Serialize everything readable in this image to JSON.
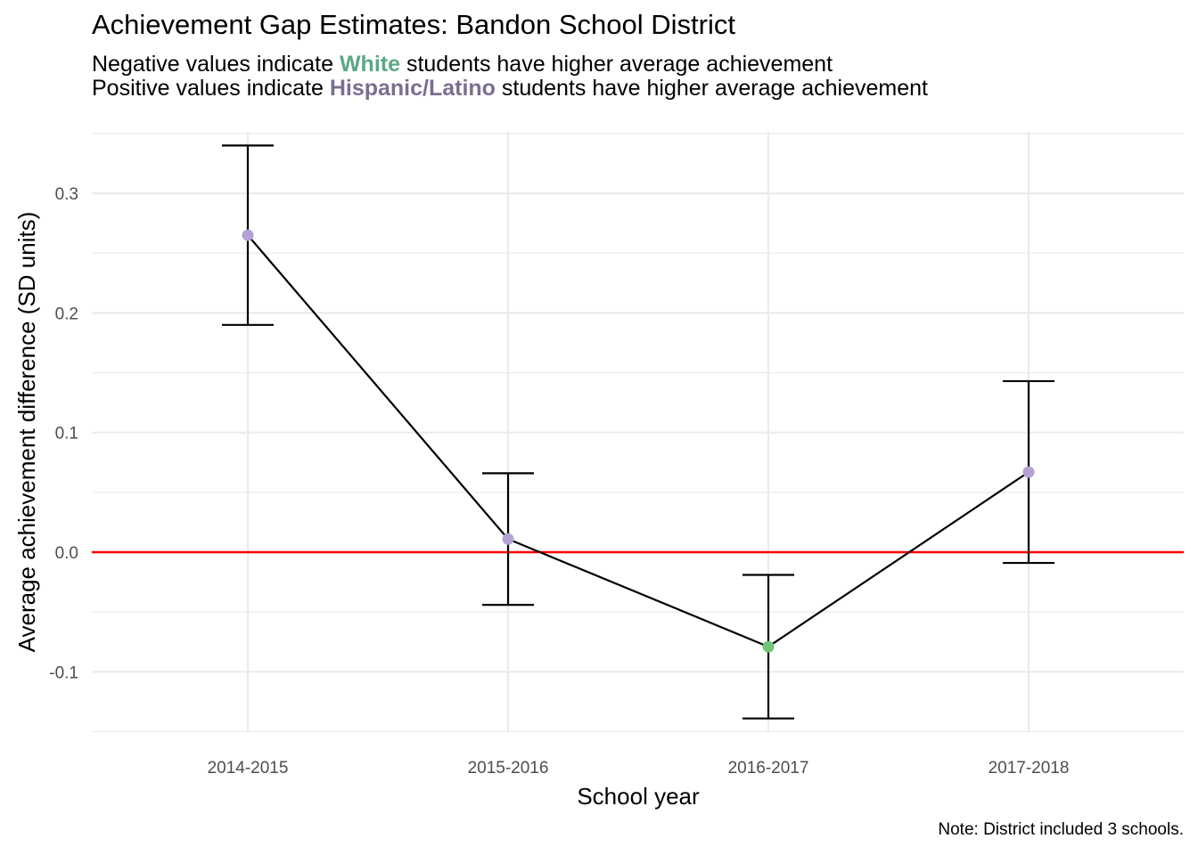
{
  "title": "Achievement Gap Estimates: Bandon School District",
  "subtitle": {
    "line1_prefix": "Negative values indicate ",
    "line1_highlight": "White",
    "line1_suffix": " students have higher average achievement",
    "line2_prefix": "Positive values indicate ",
    "line2_highlight": "Hispanic/Latino",
    "line2_suffix": " students have higher average achievement"
  },
  "caption": "Note: District included 3 schools.",
  "colors": {
    "white_group": "#5aa882",
    "hispanic_group": "#7b6e91",
    "point_positive": "#b3a2d3",
    "point_negative": "#73c378",
    "reference_line": "#ff0000",
    "grid": "#ebebeb",
    "line": "#000000"
  },
  "chart_data": {
    "type": "line",
    "xlabel": "School year",
    "ylabel": "Average achievement difference (SD units)",
    "categories": [
      "2014-2015",
      "2015-2016",
      "2016-2017",
      "2017-2018"
    ],
    "values": [
      0.265,
      0.011,
      -0.079,
      0.067
    ],
    "error_lower": [
      0.19,
      -0.044,
      -0.139,
      -0.009
    ],
    "error_upper": [
      0.34,
      0.066,
      -0.019,
      0.143
    ],
    "reference_line": 0,
    "ylim": [
      -0.15,
      0.35
    ],
    "yticks": [
      -0.1,
      0.0,
      0.1,
      0.2,
      0.3
    ],
    "ytick_labels": [
      "-0.1",
      "0.0",
      "0.1",
      "0.2",
      "0.3"
    ],
    "grid": true,
    "legend": "none"
  }
}
